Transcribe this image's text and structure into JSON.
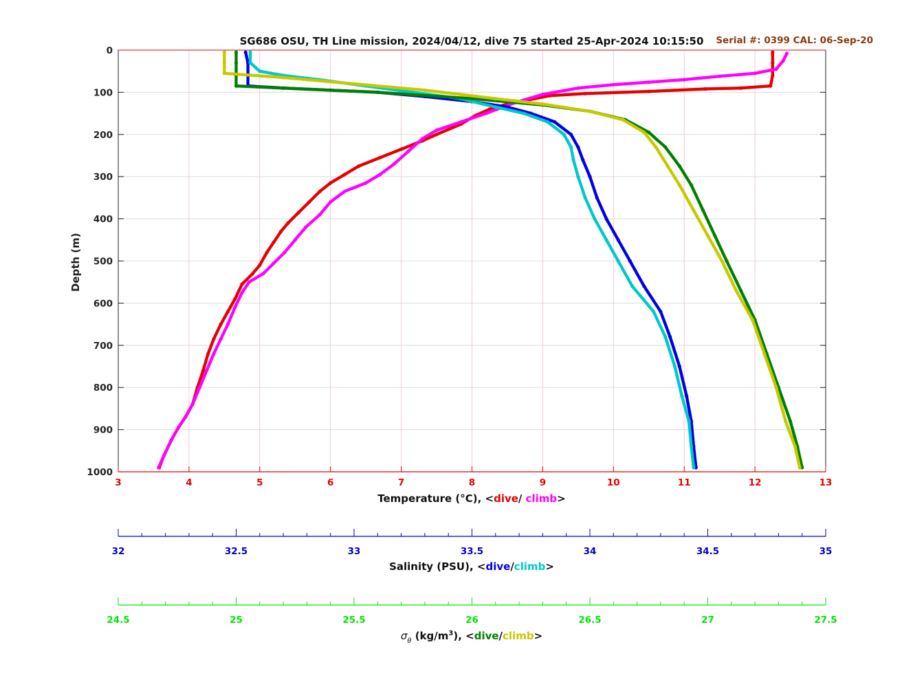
{
  "title": "SG686 OSU, TH Line mission, 2024/04/12, dive 75 started 25-Apr-2024 10:15:50",
  "serial_text": "Serial #: 0399  CAL: 06-Sep-20",
  "colors": {
    "temp_dive": "#e60000",
    "temp_climb": "#ff00ff",
    "sal_dive": "#0000e6",
    "sal_climb": "#00c8c8",
    "sig_dive": "#008000",
    "sig_climb": "#c8c800",
    "temp_axis": "#e60000",
    "sal_axis": "#0000c8",
    "sig_axis": "#00e600",
    "serial": "#8b3a0f"
  },
  "axes": {
    "depth": {
      "label": "Depth (m)",
      "range": [
        0,
        1000
      ],
      "ticks": [
        "0",
        "100",
        "200",
        "300",
        "400",
        "500",
        "600",
        "700",
        "800",
        "900",
        "1000"
      ],
      "reversed": true,
      "grid": true
    },
    "temperature": {
      "label_prefix": "Temperature (°C), <",
      "dive_word": "dive",
      "sep": "/ ",
      "climb_word": "climb",
      "label_suffix": ">",
      "range": [
        3,
        13
      ],
      "ticks": [
        "3",
        "4",
        "5",
        "6",
        "7",
        "8",
        "9",
        "10",
        "11",
        "12",
        "13"
      ],
      "grid": true
    },
    "salinity": {
      "label_prefix": "Salinity (PSU), <",
      "dive_word": "dive",
      "sep": "/",
      "climb_word": "climb",
      "label_suffix": ">",
      "range": [
        32,
        35
      ],
      "ticks": [
        "32",
        "32.5",
        "33",
        "33.5",
        "34",
        "34.5",
        "35"
      ]
    },
    "sigma": {
      "sym": "σ",
      "sub": "θ",
      "label_mid": " (kg/m",
      "sup": "3",
      "label_prefix2": "), <",
      "dive_word": "dive",
      "sep": "/",
      "climb_word": "climb",
      "label_suffix": ">",
      "range": [
        24.5,
        27.5
      ],
      "ticks": [
        "24.5",
        "25",
        "25.5",
        "26",
        "26.5",
        "27",
        "27.5"
      ]
    }
  },
  "chart_data": {
    "type": "scatter",
    "y_axis": "Depth (m)",
    "series": [
      {
        "id": "temp_dive",
        "axis": "temperature",
        "points": [
          [
            12.25,
            5
          ],
          [
            12.25,
            30
          ],
          [
            12.25,
            60
          ],
          [
            12.22,
            85
          ],
          [
            11.8,
            90
          ],
          [
            11.3,
            92
          ],
          [
            10.5,
            98
          ],
          [
            9.6,
            103
          ],
          [
            9.1,
            108
          ],
          [
            8.8,
            118
          ],
          [
            8.5,
            128
          ],
          [
            8.25,
            140
          ],
          [
            8.05,
            155
          ],
          [
            7.85,
            175
          ],
          [
            7.5,
            200
          ],
          [
            7.3,
            215
          ],
          [
            7.0,
            235
          ],
          [
            6.7,
            255
          ],
          [
            6.4,
            275
          ],
          [
            6.2,
            295
          ],
          [
            6.0,
            315
          ],
          [
            5.85,
            335
          ],
          [
            5.7,
            360
          ],
          [
            5.55,
            385
          ],
          [
            5.4,
            410
          ],
          [
            5.3,
            430
          ],
          [
            5.2,
            455
          ],
          [
            5.1,
            480
          ],
          [
            5.0,
            510
          ],
          [
            4.9,
            530
          ],
          [
            4.75,
            555
          ],
          [
            4.65,
            590
          ],
          [
            4.55,
            620
          ],
          [
            4.45,
            650
          ],
          [
            4.35,
            685
          ],
          [
            4.27,
            720
          ],
          [
            4.2,
            760
          ],
          [
            4.12,
            800
          ],
          [
            4.05,
            840
          ],
          [
            3.95,
            870
          ],
          [
            3.85,
            895
          ],
          [
            3.75,
            925
          ],
          [
            3.65,
            960
          ],
          [
            3.58,
            990
          ]
        ]
      },
      {
        "id": "temp_climb",
        "axis": "temperature",
        "points": [
          [
            3.57,
            990
          ],
          [
            3.65,
            960
          ],
          [
            3.75,
            925
          ],
          [
            3.85,
            895
          ],
          [
            3.95,
            870
          ],
          [
            4.05,
            840
          ],
          [
            4.15,
            800
          ],
          [
            4.25,
            760
          ],
          [
            4.35,
            720
          ],
          [
            4.45,
            685
          ],
          [
            4.55,
            650
          ],
          [
            4.65,
            610
          ],
          [
            4.75,
            575
          ],
          [
            4.85,
            550
          ],
          [
            5.05,
            530
          ],
          [
            5.2,
            505
          ],
          [
            5.35,
            480
          ],
          [
            5.5,
            450
          ],
          [
            5.65,
            420
          ],
          [
            5.85,
            390
          ],
          [
            6.0,
            360
          ],
          [
            6.2,
            335
          ],
          [
            6.5,
            315
          ],
          [
            6.7,
            295
          ],
          [
            6.9,
            270
          ],
          [
            7.1,
            240
          ],
          [
            7.3,
            210
          ],
          [
            7.5,
            190
          ],
          [
            7.85,
            170
          ],
          [
            8.2,
            150
          ],
          [
            8.6,
            125
          ],
          [
            9.0,
            105
          ],
          [
            9.5,
            90
          ],
          [
            10.0,
            82
          ],
          [
            10.5,
            76
          ],
          [
            11.0,
            70
          ],
          [
            11.5,
            62
          ],
          [
            12.0,
            55
          ],
          [
            12.3,
            45
          ],
          [
            12.4,
            25
          ],
          [
            12.45,
            8
          ]
        ]
      },
      {
        "id": "sal_dive",
        "axis": "salinity",
        "points": [
          [
            32.54,
            5
          ],
          [
            32.55,
            30
          ],
          [
            32.55,
            60
          ],
          [
            32.55,
            85
          ],
          [
            32.7,
            90
          ],
          [
            32.9,
            95
          ],
          [
            33.1,
            100
          ],
          [
            33.3,
            110
          ],
          [
            33.5,
            122
          ],
          [
            33.65,
            135
          ],
          [
            33.75,
            150
          ],
          [
            33.85,
            170
          ],
          [
            33.92,
            200
          ],
          [
            33.95,
            230
          ],
          [
            33.97,
            260
          ],
          [
            34.0,
            300
          ],
          [
            34.03,
            350
          ],
          [
            34.07,
            400
          ],
          [
            34.12,
            450
          ],
          [
            34.17,
            500
          ],
          [
            34.23,
            560
          ],
          [
            34.3,
            620
          ],
          [
            34.34,
            680
          ],
          [
            34.38,
            750
          ],
          [
            34.41,
            820
          ],
          [
            34.43,
            880
          ],
          [
            34.44,
            940
          ],
          [
            34.45,
            990
          ]
        ]
      },
      {
        "id": "sal_climb",
        "axis": "salinity",
        "points": [
          [
            34.44,
            990
          ],
          [
            34.43,
            940
          ],
          [
            34.42,
            880
          ],
          [
            34.39,
            820
          ],
          [
            34.36,
            750
          ],
          [
            34.32,
            680
          ],
          [
            34.27,
            620
          ],
          [
            34.18,
            560
          ],
          [
            34.12,
            500
          ],
          [
            34.07,
            450
          ],
          [
            34.02,
            400
          ],
          [
            33.98,
            350
          ],
          [
            33.95,
            300
          ],
          [
            33.93,
            260
          ],
          [
            33.92,
            230
          ],
          [
            33.89,
            200
          ],
          [
            33.82,
            170
          ],
          [
            33.72,
            150
          ],
          [
            33.6,
            135
          ],
          [
            33.45,
            115
          ],
          [
            33.25,
            100
          ],
          [
            33.05,
            85
          ],
          [
            32.85,
            70
          ],
          [
            32.7,
            60
          ],
          [
            32.6,
            50
          ],
          [
            32.56,
            30
          ],
          [
            32.56,
            5
          ]
        ]
      },
      {
        "id": "sig_dive",
        "axis": "sigma",
        "points": [
          [
            25.0,
            5
          ],
          [
            25.0,
            30
          ],
          [
            25.0,
            60
          ],
          [
            25.0,
            85
          ],
          [
            25.2,
            90
          ],
          [
            25.6,
            100
          ],
          [
            26.0,
            115
          ],
          [
            26.3,
            130
          ],
          [
            26.5,
            145
          ],
          [
            26.65,
            165
          ],
          [
            26.75,
            195
          ],
          [
            26.82,
            230
          ],
          [
            26.88,
            275
          ],
          [
            26.93,
            320
          ],
          [
            26.98,
            380
          ],
          [
            27.03,
            440
          ],
          [
            27.08,
            500
          ],
          [
            27.14,
            570
          ],
          [
            27.2,
            640
          ],
          [
            27.25,
            720
          ],
          [
            27.3,
            800
          ],
          [
            27.35,
            880
          ],
          [
            27.38,
            940
          ],
          [
            27.4,
            990
          ]
        ]
      },
      {
        "id": "sig_climb",
        "axis": "sigma",
        "points": [
          [
            27.39,
            990
          ],
          [
            27.37,
            940
          ],
          [
            27.33,
            880
          ],
          [
            27.29,
            800
          ],
          [
            27.24,
            720
          ],
          [
            27.19,
            640
          ],
          [
            27.12,
            570
          ],
          [
            27.06,
            500
          ],
          [
            27.0,
            440
          ],
          [
            26.94,
            380
          ],
          [
            26.88,
            320
          ],
          [
            26.83,
            275
          ],
          [
            26.78,
            230
          ],
          [
            26.73,
            195
          ],
          [
            26.64,
            165
          ],
          [
            26.5,
            145
          ],
          [
            26.3,
            128
          ],
          [
            26.1,
            115
          ],
          [
            25.8,
            95
          ],
          [
            25.5,
            80
          ],
          [
            25.2,
            65
          ],
          [
            24.95,
            55
          ],
          [
            24.95,
            30
          ],
          [
            24.95,
            5
          ]
        ]
      }
    ]
  }
}
